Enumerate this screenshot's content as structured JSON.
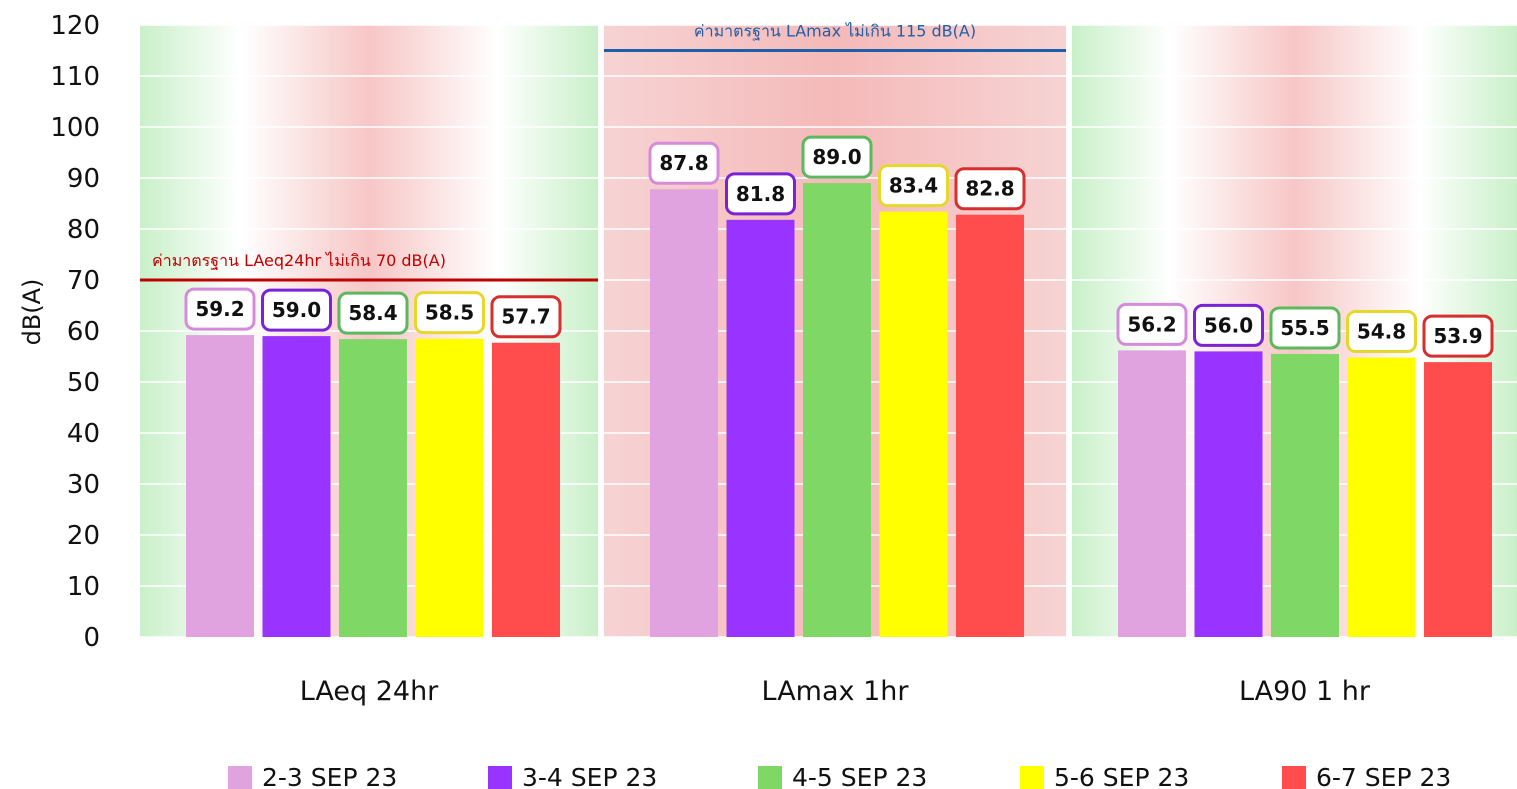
{
  "chart_data": {
    "type": "bar",
    "ylabel": "dB(A)",
    "ylim": [
      0,
      120
    ],
    "yticks": [
      0,
      10,
      20,
      30,
      40,
      50,
      60,
      70,
      80,
      90,
      100,
      110,
      120
    ],
    "grid": true,
    "legend_position": "bottom",
    "categories": [
      "LAeq 24hr",
      "LAmax 1hr",
      "LA90 1 hr"
    ],
    "series": [
      {
        "name": "2-3 SEP 23",
        "color": "#e0a3e0",
        "values": [
          59.2,
          87.8,
          56.2
        ]
      },
      {
        "name": "3-4  SEP 23",
        "color": "#9933ff",
        "values": [
          59.0,
          81.8,
          56.0
        ]
      },
      {
        "name": "4-5 SEP 23",
        "color": "#7fd766",
        "values": [
          58.4,
          89.0,
          55.5
        ]
      },
      {
        "name": "5-6 SEP 23",
        "color": "#ffff00",
        "values": [
          58.5,
          83.4,
          54.8
        ]
      },
      {
        "name": "6-7 SEP 23",
        "color": "#ff4d4d",
        "values": [
          57.7,
          82.8,
          53.9
        ]
      }
    ],
    "label_border_colors": [
      "#d58bd9",
      "#7a22d6",
      "#5cb85c",
      "#e6d82a",
      "#d62f2f"
    ],
    "standards": [
      {
        "category": "LAeq 24hr",
        "value": 70,
        "label": "ค่ามาตรฐาน LAeq24hr ไม่เกิน 70 dB(A)",
        "color": "#c00000"
      },
      {
        "category": "LAmax 1hr",
        "value": 115,
        "label": "ค่ามาตรฐาน LAmax ไม่เกิน 115 dB(A)",
        "color": "#1f5fa8"
      }
    ]
  }
}
